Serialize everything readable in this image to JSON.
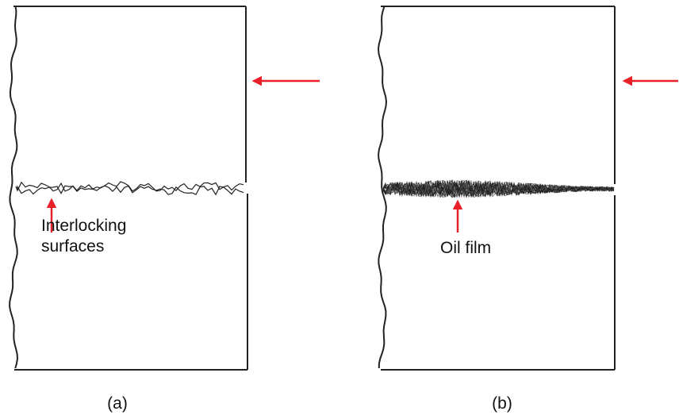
{
  "panels": [
    {
      "label": "(a)",
      "annotation": [
        "Interlocking",
        "surfaces"
      ]
    },
    {
      "label": "(b)",
      "annotation": [
        "Oil film"
      ]
    }
  ]
}
